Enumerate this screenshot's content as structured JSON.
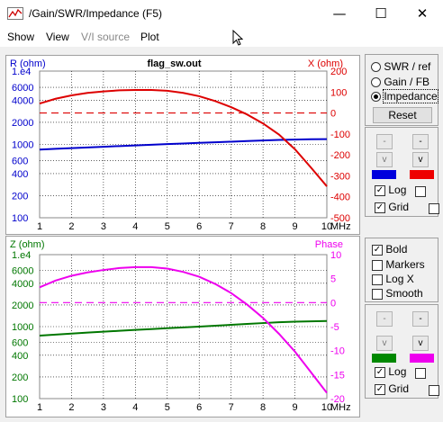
{
  "window": {
    "title": "/Gain/SWR/Impedance (F5)",
    "minimize_glyph": "—",
    "maximize_glyph": "☐",
    "close_glyph": "✕"
  },
  "menu": [
    "Show",
    "View",
    "V/I source",
    "Plot"
  ],
  "top_chart": {
    "file_label": "flag_sw.out",
    "left_axis_label": "R (ohm)",
    "right_axis_label": "X (ohm)",
    "left_ticks": [
      "1.e4",
      "6000",
      "4000",
      "2000",
      "1000",
      "600",
      "400",
      "200",
      "100"
    ],
    "right_ticks": [
      "200",
      "100",
      "0",
      "-100",
      "-200",
      "-300",
      "-400",
      "-500"
    ],
    "x_ticks": [
      "1",
      "2",
      "3",
      "4",
      "5",
      "6",
      "7",
      "8",
      "9",
      "10"
    ],
    "x_unit": "MHz",
    "colors": {
      "left": "#0000cc",
      "right": "#dd0000"
    }
  },
  "bottom_chart": {
    "left_axis_label": "Z (ohm)",
    "right_axis_label": "Phase",
    "left_ticks": [
      "1.e4",
      "6000",
      "4000",
      "2000",
      "1000",
      "600",
      "400",
      "200",
      "100"
    ],
    "right_ticks": [
      "10",
      "5",
      "0",
      "-5",
      "-10",
      "-15",
      "-20"
    ],
    "x_ticks": [
      "1",
      "2",
      "3",
      "4",
      "5",
      "6",
      "7",
      "8",
      "9",
      "10"
    ],
    "x_unit": "MHz",
    "colors": {
      "left": "#007700",
      "right": "#ee00ee"
    }
  },
  "chart_data": [
    {
      "type": "line",
      "x": [
        1,
        1.5,
        2,
        2.5,
        3,
        3.5,
        4,
        4.5,
        5,
        5.5,
        6,
        6.5,
        7,
        7.5,
        8,
        8.5,
        9,
        9.5,
        10
      ],
      "series": [
        {
          "axis": "left",
          "scale": "log",
          "ylim": [
            100,
            10000
          ],
          "values": [
            850,
            870,
            890,
            910,
            930,
            950,
            970,
            990,
            1010,
            1030,
            1050,
            1070,
            1090,
            1110,
            1130,
            1150,
            1165,
            1175,
            1180
          ]
        },
        {
          "axis": "right",
          "ylim": [
            -500,
            200
          ],
          "values": [
            45,
            68,
            84,
            96,
            103,
            108,
            110,
            110,
            106,
            96,
            80,
            57,
            28,
            -7,
            -50,
            -103,
            -173,
            -260,
            -350
          ]
        },
        {
          "axis": "right",
          "ylim": [
            -500,
            200
          ],
          "style": "dashed",
          "values": [
            0,
            0,
            0,
            0,
            0,
            0,
            0,
            0,
            0,
            0,
            0,
            0,
            0,
            0,
            0,
            0,
            0,
            0,
            0
          ]
        }
      ],
      "xlim": [
        1,
        10
      ]
    },
    {
      "type": "line",
      "x": [
        1,
        1.5,
        2,
        2.5,
        3,
        3.5,
        4,
        4.5,
        5,
        5.5,
        6,
        6.5,
        7,
        7.5,
        8,
        8.5,
        9,
        9.5,
        10
      ],
      "series": [
        {
          "axis": "left",
          "scale": "log",
          "ylim": [
            100,
            10000
          ],
          "values": [
            750,
            775,
            800,
            825,
            850,
            875,
            900,
            925,
            950,
            975,
            1000,
            1030,
            1060,
            1090,
            1120,
            1150,
            1170,
            1185,
            1195
          ]
        },
        {
          "axis": "right",
          "ylim": [
            -20,
            10
          ],
          "values": [
            3.2,
            4.6,
            5.6,
            6.3,
            6.8,
            7.2,
            7.4,
            7.4,
            7.1,
            6.4,
            5.4,
            3.9,
            2.0,
            -0.4,
            -3.2,
            -6.5,
            -10.2,
            -14.5,
            -18.8
          ]
        },
        {
          "axis": "right",
          "ylim": [
            -20,
            10
          ],
          "style": "dashed",
          "values": [
            0,
            0,
            0,
            0,
            0,
            0,
            0,
            0,
            0,
            0,
            0,
            0,
            0,
            0,
            0,
            0,
            0,
            0,
            0
          ]
        }
      ],
      "xlim": [
        1,
        10
      ]
    }
  ],
  "mode_group": {
    "options": [
      "SWR / ref",
      "Gain / FB",
      "Impedance"
    ],
    "selected": 2,
    "reset_label": "Reset"
  },
  "top_controls": {
    "up": "-",
    "down": "v",
    "log_label": "Log",
    "grid_label": "Grid",
    "log_left": true,
    "log_right": false,
    "grid_left": true,
    "grid_right": false,
    "swatch_left": "#0000dd",
    "swatch_right": "#ee0000"
  },
  "options_group": {
    "items": [
      {
        "label": "Bold",
        "checked": true
      },
      {
        "label": "Markers",
        "checked": false
      },
      {
        "label": "Log X",
        "checked": false
      },
      {
        "label": "Smooth",
        "checked": false
      }
    ]
  },
  "bottom_controls": {
    "up": "-",
    "down": "v",
    "log_label": "Log",
    "grid_label": "Grid",
    "log_left": true,
    "log_right": false,
    "grid_left": true,
    "grid_right": false,
    "swatch_left": "#008800",
    "swatch_right": "#ee00ee"
  },
  "check_glyph": "✓"
}
